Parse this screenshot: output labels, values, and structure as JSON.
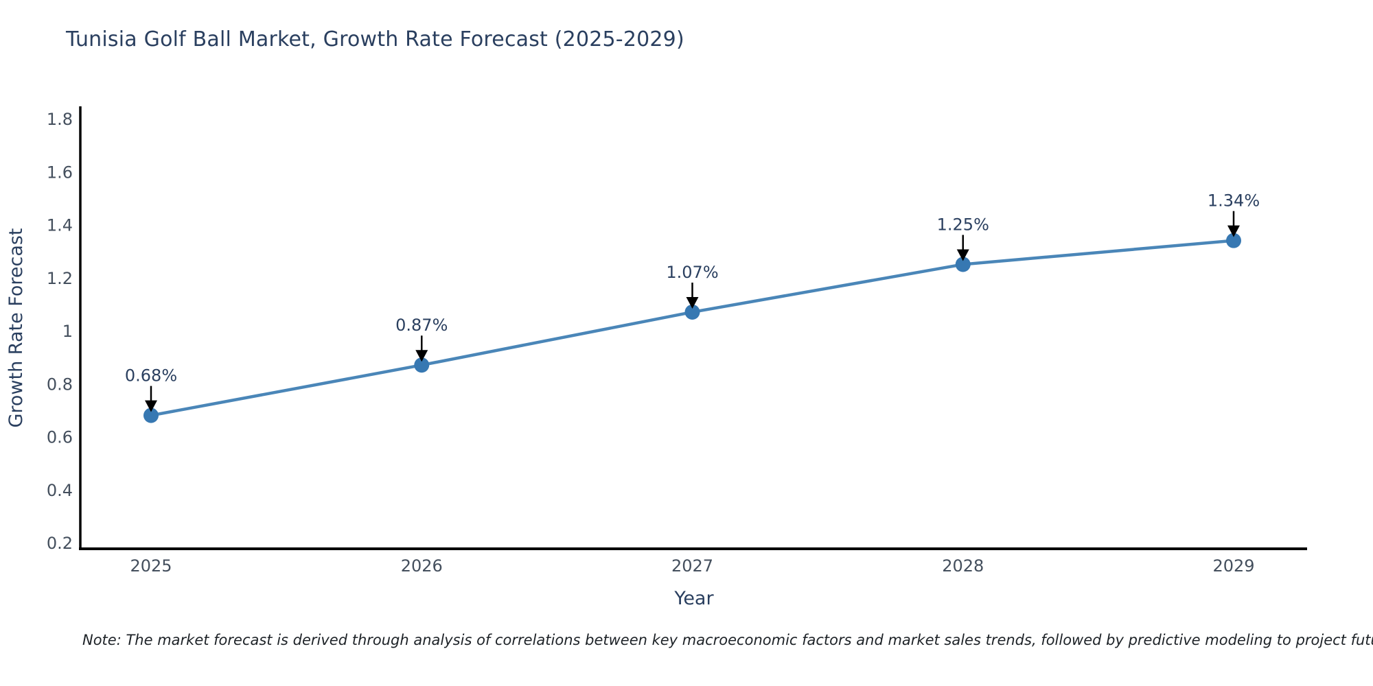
{
  "chart_data": {
    "type": "line",
    "title": "Tunisia Golf Ball Market, Growth Rate Forecast (2025-2029)",
    "xlabel": "Year",
    "ylabel": "Growth Rate Forecast",
    "categories": [
      "2025",
      "2026",
      "2027",
      "2028",
      "2029"
    ],
    "series": [
      {
        "name": "Growth Rate Forecast",
        "values": [
          0.68,
          0.87,
          1.07,
          1.25,
          1.34
        ],
        "point_labels": [
          "0.68%",
          "0.87%",
          "1.07%",
          "1.25%",
          "1.34%"
        ]
      }
    ],
    "ylim": [
      0.2,
      1.8
    ],
    "ytick_labels": [
      "0.2",
      "0.4",
      "0.6",
      "0.8",
      "1",
      "1.2",
      "1.4",
      "1.6",
      "1.8"
    ],
    "ytick_values": [
      0.2,
      0.4,
      0.6,
      0.8,
      1.0,
      1.2,
      1.4,
      1.6,
      1.8
    ],
    "grid": false,
    "legend": "none",
    "colors": {
      "line": "#4a86b8",
      "marker": "#3778b2",
      "axis": "#000000",
      "title_text": "#2a3f5f",
      "tick_text": "#444f5d",
      "annotation_text": "#2a3f5f",
      "annotation_arrow": "#000000"
    }
  },
  "note": "Note: The market forecast is derived through analysis of correlations between key macroeconomic factors and market sales trends, followed by predictive modeling to project future sales"
}
